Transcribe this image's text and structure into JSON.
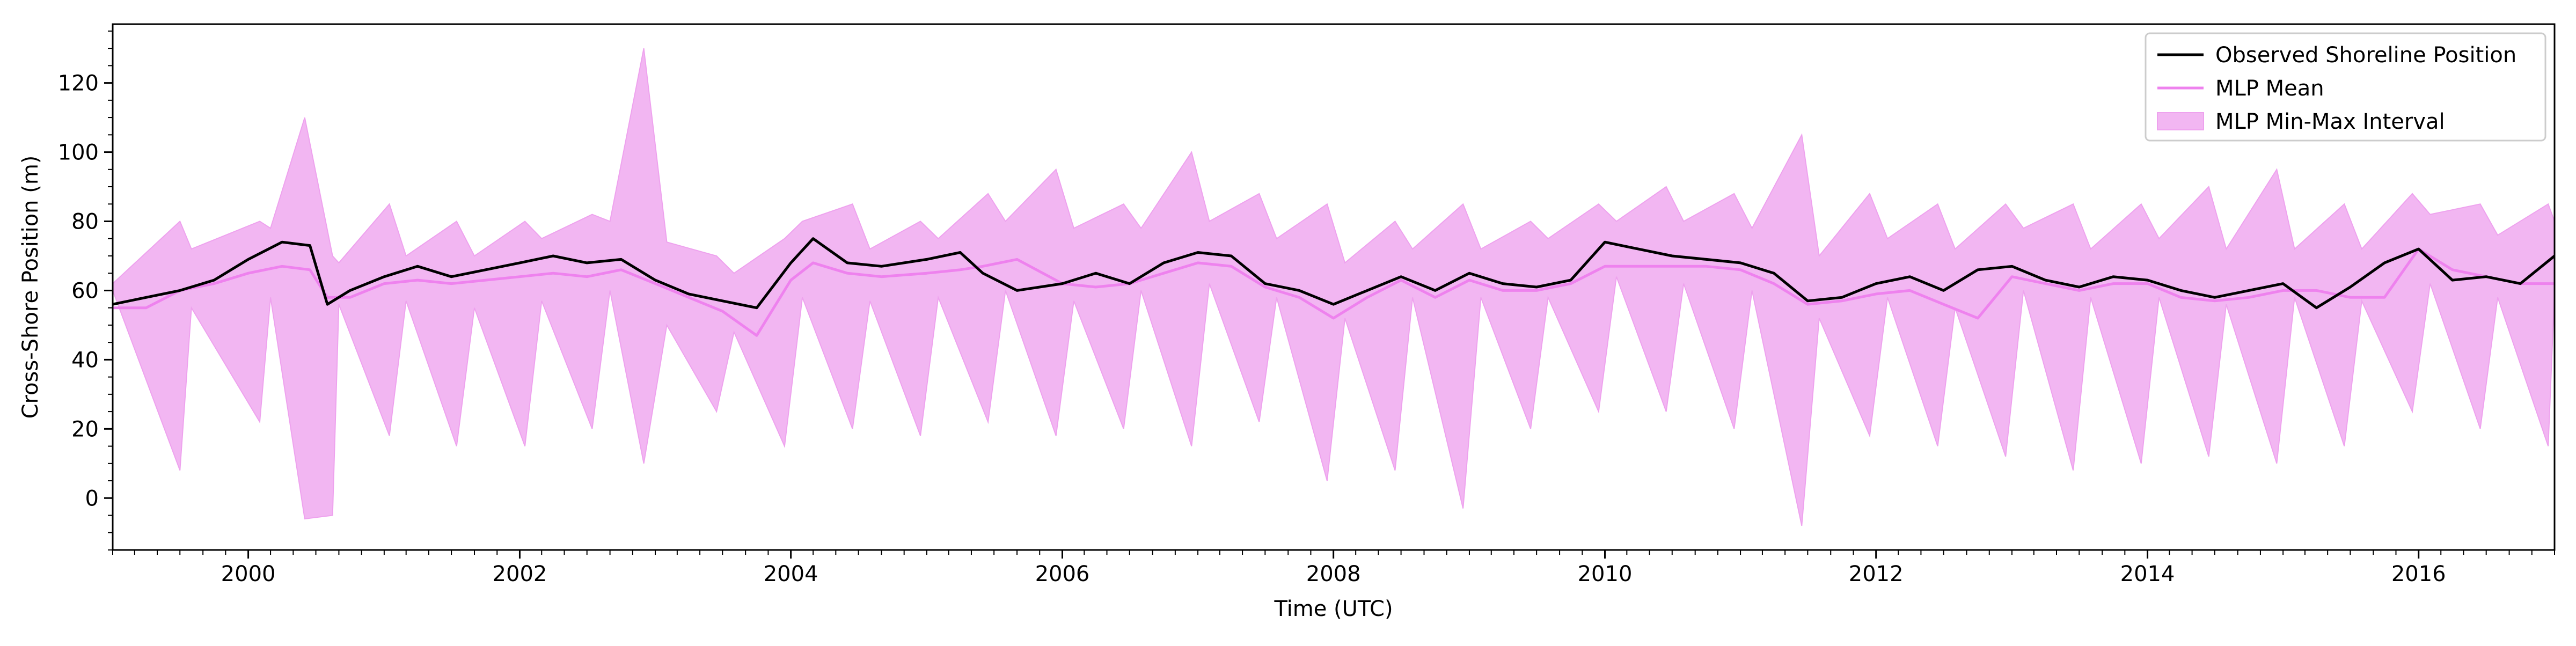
{
  "chart_data": {
    "type": "line",
    "title": "",
    "xlabel": "Time (UTC)",
    "ylabel": "Cross-Shore Position (m)",
    "xlim": [
      "1999-01-01",
      "2017-01-01"
    ],
    "ylim": [
      -15,
      137
    ],
    "grid": false,
    "legend_position": "top-right",
    "x_ticks": [
      "2000",
      "2002",
      "2004",
      "2006",
      "2008",
      "2010",
      "2012",
      "2014",
      "2016"
    ],
    "y_ticks": [
      "0",
      "20",
      "40",
      "60",
      "80",
      "100",
      "120"
    ],
    "colors": {
      "observed": "#000000",
      "mean": "#ee82ee",
      "band_fill": "#f2b6f2",
      "band_edge": "#eea2ee"
    },
    "series": [
      {
        "name": "Observed Shoreline Position",
        "role": "observed",
        "points": [
          [
            "1999-01-01",
            56
          ],
          [
            "1999-04-01",
            58
          ],
          [
            "1999-07-01",
            60
          ],
          [
            "1999-10-01",
            63
          ],
          [
            "2000-01-01",
            69
          ],
          [
            "2000-04-01",
            74
          ],
          [
            "2000-06-15",
            73
          ],
          [
            "2000-08-01",
            56
          ],
          [
            "2000-10-01",
            60
          ],
          [
            "2001-01-01",
            64
          ],
          [
            "2001-04-01",
            67
          ],
          [
            "2001-07-01",
            64
          ],
          [
            "2001-10-01",
            66
          ],
          [
            "2002-01-01",
            68
          ],
          [
            "2002-04-01",
            70
          ],
          [
            "2002-07-01",
            68
          ],
          [
            "2002-10-01",
            69
          ],
          [
            "2003-01-01",
            63
          ],
          [
            "2003-04-01",
            59
          ],
          [
            "2003-07-01",
            57
          ],
          [
            "2003-10-01",
            55
          ],
          [
            "2004-01-01",
            68
          ],
          [
            "2004-03-01",
            75
          ],
          [
            "2004-06-01",
            68
          ],
          [
            "2004-09-01",
            67
          ],
          [
            "2005-01-01",
            69
          ],
          [
            "2005-04-01",
            71
          ],
          [
            "2005-06-01",
            65
          ],
          [
            "2005-09-01",
            60
          ],
          [
            "2006-01-01",
            62
          ],
          [
            "2006-04-01",
            65
          ],
          [
            "2006-07-01",
            62
          ],
          [
            "2006-10-01",
            68
          ],
          [
            "2007-01-01",
            71
          ],
          [
            "2007-04-01",
            70
          ],
          [
            "2007-07-01",
            62
          ],
          [
            "2007-10-01",
            60
          ],
          [
            "2008-01-01",
            56
          ],
          [
            "2008-04-01",
            60
          ],
          [
            "2008-07-01",
            64
          ],
          [
            "2008-10-01",
            60
          ],
          [
            "2009-01-01",
            65
          ],
          [
            "2009-04-01",
            62
          ],
          [
            "2009-07-01",
            61
          ],
          [
            "2009-10-01",
            63
          ],
          [
            "2010-01-01",
            74
          ],
          [
            "2010-04-01",
            72
          ],
          [
            "2010-07-01",
            70
          ],
          [
            "2010-10-01",
            69
          ],
          [
            "2011-01-01",
            68
          ],
          [
            "2011-04-01",
            65
          ],
          [
            "2011-07-01",
            57
          ],
          [
            "2011-10-01",
            58
          ],
          [
            "2012-01-01",
            62
          ],
          [
            "2012-04-01",
            64
          ],
          [
            "2012-07-01",
            60
          ],
          [
            "2012-10-01",
            66
          ],
          [
            "2013-01-01",
            67
          ],
          [
            "2013-04-01",
            63
          ],
          [
            "2013-07-01",
            61
          ],
          [
            "2013-10-01",
            64
          ],
          [
            "2014-01-01",
            63
          ],
          [
            "2014-04-01",
            60
          ],
          [
            "2014-07-01",
            58
          ],
          [
            "2014-10-01",
            60
          ],
          [
            "2015-01-01",
            62
          ],
          [
            "2015-04-01",
            55
          ],
          [
            "2015-07-01",
            61
          ],
          [
            "2015-10-01",
            68
          ],
          [
            "2016-01-01",
            72
          ],
          [
            "2016-04-01",
            63
          ],
          [
            "2016-07-01",
            64
          ],
          [
            "2016-10-01",
            62
          ],
          [
            "2017-01-01",
            70
          ]
        ]
      },
      {
        "name": "MLP Mean",
        "role": "mean",
        "points": [
          [
            "1999-01-01",
            55
          ],
          [
            "1999-04-01",
            55
          ],
          [
            "1999-07-01",
            60
          ],
          [
            "1999-10-01",
            62
          ],
          [
            "2000-01-01",
            65
          ],
          [
            "2000-04-01",
            67
          ],
          [
            "2000-06-15",
            66
          ],
          [
            "2000-08-01",
            58
          ],
          [
            "2000-10-01",
            58
          ],
          [
            "2001-01-01",
            62
          ],
          [
            "2001-04-01",
            63
          ],
          [
            "2001-07-01",
            62
          ],
          [
            "2001-10-01",
            63
          ],
          [
            "2002-01-01",
            64
          ],
          [
            "2002-04-01",
            65
          ],
          [
            "2002-07-01",
            64
          ],
          [
            "2002-10-01",
            66
          ],
          [
            "2003-01-01",
            62
          ],
          [
            "2003-04-01",
            58
          ],
          [
            "2003-07-01",
            54
          ],
          [
            "2003-10-01",
            47
          ],
          [
            "2004-01-01",
            63
          ],
          [
            "2004-03-01",
            68
          ],
          [
            "2004-06-01",
            65
          ],
          [
            "2004-09-01",
            64
          ],
          [
            "2005-01-01",
            65
          ],
          [
            "2005-04-01",
            66
          ],
          [
            "2005-06-01",
            67
          ],
          [
            "2005-09-01",
            69
          ],
          [
            "2006-01-01",
            62
          ],
          [
            "2006-04-01",
            61
          ],
          [
            "2006-07-01",
            62
          ],
          [
            "2006-10-01",
            65
          ],
          [
            "2007-01-01",
            68
          ],
          [
            "2007-04-01",
            67
          ],
          [
            "2007-07-01",
            61
          ],
          [
            "2007-10-01",
            58
          ],
          [
            "2008-01-01",
            52
          ],
          [
            "2008-04-01",
            58
          ],
          [
            "2008-07-01",
            63
          ],
          [
            "2008-10-01",
            58
          ],
          [
            "2009-01-01",
            63
          ],
          [
            "2009-04-01",
            60
          ],
          [
            "2009-07-01",
            60
          ],
          [
            "2009-10-01",
            62
          ],
          [
            "2010-01-01",
            67
          ],
          [
            "2010-04-01",
            67
          ],
          [
            "2010-07-01",
            67
          ],
          [
            "2010-10-01",
            67
          ],
          [
            "2011-01-01",
            66
          ],
          [
            "2011-04-01",
            62
          ],
          [
            "2011-07-01",
            56
          ],
          [
            "2011-10-01",
            57
          ],
          [
            "2012-01-01",
            59
          ],
          [
            "2012-04-01",
            60
          ],
          [
            "2012-07-01",
            56
          ],
          [
            "2012-10-01",
            52
          ],
          [
            "2013-01-01",
            64
          ],
          [
            "2013-04-01",
            62
          ],
          [
            "2013-07-01",
            60
          ],
          [
            "2013-10-01",
            62
          ],
          [
            "2014-01-01",
            62
          ],
          [
            "2014-04-01",
            58
          ],
          [
            "2014-07-01",
            57
          ],
          [
            "2014-10-01",
            58
          ],
          [
            "2015-01-01",
            60
          ],
          [
            "2015-04-01",
            60
          ],
          [
            "2015-07-01",
            58
          ],
          [
            "2015-10-01",
            58
          ],
          [
            "2016-01-01",
            72
          ],
          [
            "2016-04-01",
            66
          ],
          [
            "2016-07-01",
            64
          ],
          [
            "2016-10-01",
            62
          ],
          [
            "2017-01-01",
            62
          ]
        ]
      },
      {
        "name": "MLP Min-Max Interval",
        "role": "interval",
        "points": [
          [
            "1999-01-01",
            60,
            62
          ],
          [
            "1999-07-01",
            8,
            80
          ],
          [
            "1999-08-01",
            55,
            72
          ],
          [
            "2000-02-01",
            22,
            80
          ],
          [
            "2000-03-01",
            58,
            78
          ],
          [
            "2000-06-01",
            -6,
            110
          ],
          [
            "2000-08-15",
            -5,
            70
          ],
          [
            "2000-09-01",
            56,
            68
          ],
          [
            "2001-01-15",
            18,
            85
          ],
          [
            "2001-03-01",
            57,
            70
          ],
          [
            "2001-07-15",
            15,
            80
          ],
          [
            "2001-09-01",
            55,
            70
          ],
          [
            "2002-01-15",
            15,
            80
          ],
          [
            "2002-03-01",
            57,
            75
          ],
          [
            "2002-07-15",
            20,
            82
          ],
          [
            "2002-09-01",
            60,
            80
          ],
          [
            "2002-12-01",
            10,
            130
          ],
          [
            "2003-02-01",
            50,
            74
          ],
          [
            "2003-06-15",
            25,
            70
          ],
          [
            "2003-08-01",
            48,
            65
          ],
          [
            "2003-12-15",
            15,
            75
          ],
          [
            "2004-02-01",
            58,
            80
          ],
          [
            "2004-06-15",
            20,
            85
          ],
          [
            "2004-08-01",
            57,
            72
          ],
          [
            "2004-12-15",
            18,
            80
          ],
          [
            "2005-02-01",
            58,
            75
          ],
          [
            "2005-06-15",
            22,
            88
          ],
          [
            "2005-08-01",
            60,
            80
          ],
          [
            "2005-12-15",
            18,
            95
          ],
          [
            "2006-02-01",
            57,
            78
          ],
          [
            "2006-06-15",
            20,
            85
          ],
          [
            "2006-08-01",
            60,
            78
          ],
          [
            "2006-12-15",
            15,
            100
          ],
          [
            "2007-02-01",
            62,
            80
          ],
          [
            "2007-06-15",
            22,
            88
          ],
          [
            "2007-08-01",
            58,
            75
          ],
          [
            "2007-12-15",
            5,
            85
          ],
          [
            "2008-02-01",
            52,
            68
          ],
          [
            "2008-06-15",
            8,
            80
          ],
          [
            "2008-08-01",
            58,
            72
          ],
          [
            "2008-12-15",
            -3,
            85
          ],
          [
            "2009-02-01",
            58,
            72
          ],
          [
            "2009-06-15",
            20,
            80
          ],
          [
            "2009-08-01",
            58,
            75
          ],
          [
            "2009-12-15",
            25,
            85
          ],
          [
            "2010-02-01",
            64,
            80
          ],
          [
            "2010-06-15",
            25,
            90
          ],
          [
            "2010-08-01",
            62,
            80
          ],
          [
            "2010-12-15",
            20,
            88
          ],
          [
            "2011-02-01",
            60,
            78
          ],
          [
            "2011-06-15",
            -8,
            105
          ],
          [
            "2011-08-01",
            52,
            70
          ],
          [
            "2011-12-15",
            18,
            88
          ],
          [
            "2012-02-01",
            58,
            75
          ],
          [
            "2012-06-15",
            15,
            85
          ],
          [
            "2012-08-01",
            55,
            72
          ],
          [
            "2012-12-15",
            12,
            85
          ],
          [
            "2013-02-01",
            60,
            78
          ],
          [
            "2013-06-15",
            8,
            85
          ],
          [
            "2013-08-01",
            58,
            72
          ],
          [
            "2013-12-15",
            10,
            85
          ],
          [
            "2014-02-01",
            58,
            75
          ],
          [
            "2014-06-15",
            12,
            90
          ],
          [
            "2014-08-01",
            56,
            72
          ],
          [
            "2014-12-15",
            10,
            95
          ],
          [
            "2015-02-01",
            58,
            72
          ],
          [
            "2015-06-15",
            15,
            85
          ],
          [
            "2015-08-01",
            57,
            72
          ],
          [
            "2015-12-15",
            25,
            88
          ],
          [
            "2016-02-01",
            62,
            82
          ],
          [
            "2016-06-15",
            20,
            85
          ],
          [
            "2016-08-01",
            58,
            76
          ],
          [
            "2016-12-15",
            15,
            85
          ],
          [
            "2017-01-01",
            60,
            80
          ]
        ]
      }
    ]
  }
}
